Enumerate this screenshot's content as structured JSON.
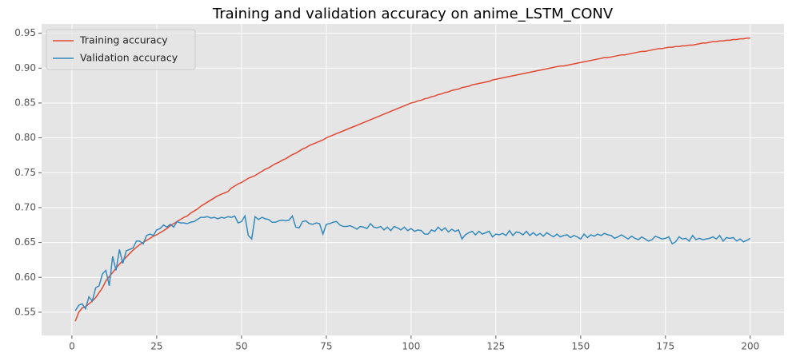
{
  "chart_data": {
    "type": "line",
    "title": "Training and validation accuracy on anime_LSTM_CONV",
    "x": [
      1,
      2,
      3,
      4,
      5,
      6,
      7,
      8,
      9,
      10,
      11,
      12,
      13,
      14,
      15,
      16,
      17,
      18,
      19,
      20,
      21,
      22,
      23,
      24,
      25,
      26,
      27,
      28,
      29,
      30,
      31,
      32,
      33,
      34,
      35,
      36,
      37,
      38,
      39,
      40,
      41,
      42,
      43,
      44,
      45,
      46,
      47,
      48,
      49,
      50,
      51,
      52,
      53,
      54,
      55,
      56,
      57,
      58,
      59,
      60,
      61,
      62,
      63,
      64,
      65,
      66,
      67,
      68,
      69,
      70,
      71,
      72,
      73,
      74,
      75,
      76,
      77,
      78,
      79,
      80,
      81,
      82,
      83,
      84,
      85,
      86,
      87,
      88,
      89,
      90,
      91,
      92,
      93,
      94,
      95,
      96,
      97,
      98,
      99,
      100,
      101,
      102,
      103,
      104,
      105,
      106,
      107,
      108,
      109,
      110,
      111,
      112,
      113,
      114,
      115,
      116,
      117,
      118,
      119,
      120,
      121,
      122,
      123,
      124,
      125,
      126,
      127,
      128,
      129,
      130,
      131,
      132,
      133,
      134,
      135,
      136,
      137,
      138,
      139,
      140,
      141,
      142,
      143,
      144,
      145,
      146,
      147,
      148,
      149,
      150,
      151,
      152,
      153,
      154,
      155,
      156,
      157,
      158,
      159,
      160,
      161,
      162,
      163,
      164,
      165,
      166,
      167,
      168,
      169,
      170,
      171,
      172,
      173,
      174,
      175,
      176,
      177,
      178,
      179,
      180,
      181,
      182,
      183,
      184,
      185,
      186,
      187,
      188,
      189,
      190,
      191,
      192,
      193,
      194,
      195,
      196,
      197,
      198,
      199,
      200
    ],
    "series": [
      {
        "name": "Training accuracy",
        "color": "#E24A33",
        "values": [
          0.537,
          0.55,
          0.556,
          0.558,
          0.562,
          0.566,
          0.571,
          0.578,
          0.585,
          0.595,
          0.601,
          0.607,
          0.613,
          0.619,
          0.624,
          0.629,
          0.634,
          0.639,
          0.643,
          0.647,
          0.65,
          0.653,
          0.656,
          0.659,
          0.661,
          0.664,
          0.667,
          0.67,
          0.674,
          0.677,
          0.68,
          0.683,
          0.686,
          0.688,
          0.692,
          0.695,
          0.698,
          0.702,
          0.705,
          0.708,
          0.711,
          0.714,
          0.717,
          0.719,
          0.721,
          0.723,
          0.728,
          0.731,
          0.734,
          0.736,
          0.739,
          0.742,
          0.744,
          0.746,
          0.749,
          0.752,
          0.755,
          0.757,
          0.76,
          0.763,
          0.765,
          0.768,
          0.77,
          0.773,
          0.776,
          0.778,
          0.781,
          0.784,
          0.786,
          0.789,
          0.791,
          0.793,
          0.795,
          0.797,
          0.8,
          0.802,
          0.804,
          0.806,
          0.808,
          0.81,
          0.812,
          0.814,
          0.816,
          0.818,
          0.82,
          0.822,
          0.824,
          0.826,
          0.828,
          0.83,
          0.832,
          0.834,
          0.836,
          0.838,
          0.84,
          0.842,
          0.844,
          0.846,
          0.848,
          0.85,
          0.851,
          0.853,
          0.854,
          0.856,
          0.857,
          0.859,
          0.86,
          0.862,
          0.863,
          0.865,
          0.866,
          0.868,
          0.869,
          0.87,
          0.872,
          0.873,
          0.874,
          0.876,
          0.877,
          0.878,
          0.879,
          0.88,
          0.881,
          0.883,
          0.884,
          0.885,
          0.886,
          0.887,
          0.888,
          0.889,
          0.89,
          0.891,
          0.892,
          0.893,
          0.894,
          0.895,
          0.896,
          0.897,
          0.898,
          0.899,
          0.9,
          0.901,
          0.902,
          0.903,
          0.903,
          0.904,
          0.905,
          0.906,
          0.907,
          0.908,
          0.909,
          0.91,
          0.911,
          0.912,
          0.913,
          0.914,
          0.915,
          0.915,
          0.916,
          0.917,
          0.918,
          0.919,
          0.919,
          0.92,
          0.921,
          0.922,
          0.923,
          0.924,
          0.924,
          0.925,
          0.926,
          0.927,
          0.928,
          0.928,
          0.929,
          0.93,
          0.93,
          0.931,
          0.931,
          0.932,
          0.932,
          0.933,
          0.933,
          0.934,
          0.935,
          0.936,
          0.936,
          0.937,
          0.938,
          0.938,
          0.939,
          0.939,
          0.94,
          0.94,
          0.941,
          0.941,
          0.942,
          0.942,
          0.943,
          0.943
        ]
      },
      {
        "name": "Validation accuracy",
        "color": "#348ABD",
        "values": [
          0.552,
          0.56,
          0.562,
          0.555,
          0.572,
          0.566,
          0.585,
          0.588,
          0.605,
          0.61,
          0.588,
          0.63,
          0.61,
          0.64,
          0.62,
          0.638,
          0.64,
          0.642,
          0.652,
          0.652,
          0.648,
          0.66,
          0.662,
          0.66,
          0.668,
          0.67,
          0.675,
          0.672,
          0.676,
          0.672,
          0.68,
          0.678,
          0.678,
          0.677,
          0.679,
          0.68,
          0.683,
          0.686,
          0.686,
          0.687,
          0.685,
          0.686,
          0.684,
          0.686,
          0.685,
          0.687,
          0.686,
          0.688,
          0.678,
          0.68,
          0.688,
          0.66,
          0.655,
          0.687,
          0.683,
          0.686,
          0.684,
          0.683,
          0.679,
          0.679,
          0.681,
          0.682,
          0.681,
          0.682,
          0.688,
          0.672,
          0.671,
          0.68,
          0.681,
          0.677,
          0.676,
          0.678,
          0.677,
          0.662,
          0.676,
          0.677,
          0.679,
          0.68,
          0.675,
          0.673,
          0.673,
          0.674,
          0.672,
          0.669,
          0.673,
          0.672,
          0.67,
          0.677,
          0.672,
          0.671,
          0.673,
          0.668,
          0.672,
          0.667,
          0.673,
          0.671,
          0.668,
          0.672,
          0.667,
          0.67,
          0.666,
          0.668,
          0.667,
          0.662,
          0.662,
          0.668,
          0.666,
          0.672,
          0.667,
          0.671,
          0.665,
          0.669,
          0.666,
          0.668,
          0.655,
          0.661,
          0.664,
          0.666,
          0.661,
          0.666,
          0.662,
          0.664,
          0.666,
          0.658,
          0.662,
          0.661,
          0.663,
          0.66,
          0.667,
          0.66,
          0.665,
          0.664,
          0.661,
          0.666,
          0.66,
          0.664,
          0.66,
          0.663,
          0.659,
          0.664,
          0.661,
          0.658,
          0.662,
          0.658,
          0.66,
          0.661,
          0.657,
          0.66,
          0.658,
          0.655,
          0.662,
          0.657,
          0.661,
          0.659,
          0.662,
          0.66,
          0.663,
          0.661,
          0.66,
          0.656,
          0.658,
          0.661,
          0.658,
          0.655,
          0.659,
          0.656,
          0.654,
          0.658,
          0.655,
          0.652,
          0.654,
          0.659,
          0.657,
          0.655,
          0.656,
          0.658,
          0.648,
          0.651,
          0.658,
          0.655,
          0.656,
          0.652,
          0.66,
          0.654,
          0.656,
          0.654,
          0.655,
          0.656,
          0.658,
          0.655,
          0.66,
          0.652,
          0.657,
          0.656,
          0.657,
          0.652,
          0.655,
          0.651,
          0.653,
          0.656
        ]
      }
    ],
    "xlim": [
      -8.95,
      209.95
    ],
    "xticks": [
      0,
      25,
      50,
      75,
      100,
      125,
      150,
      175,
      200
    ],
    "ylim": [
      0.5167,
      0.9633
    ],
    "yticks": [
      0.55,
      {
        "value": 0.6,
        "label": "0.60"
      },
      0.65,
      {
        "value": 0.7,
        "label": "0.70"
      },
      0.75,
      {
        "value": 0.8,
        "label": "0.80"
      },
      0.85,
      {
        "value": 0.9,
        "label": "0.90"
      },
      0.95
    ],
    "grid": true,
    "legend": "upper left"
  }
}
